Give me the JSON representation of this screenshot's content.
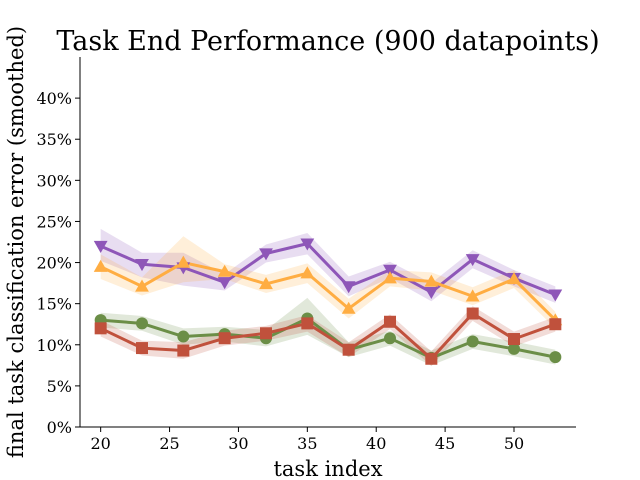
{
  "chart_data": {
    "type": "line",
    "title": "Task End Performance (900 datapoints)",
    "xlabel": "task index",
    "ylabel": "final task classification error (smoothed)",
    "xlim": [
      18.5,
      54.5
    ],
    "ylim": [
      0,
      45
    ],
    "x_ticks": [
      20,
      25,
      30,
      35,
      40,
      45,
      50
    ],
    "x_tick_labels": [
      "20",
      "25",
      "30",
      "35",
      "40",
      "45",
      "50"
    ],
    "y_ticks": [
      0,
      5,
      10,
      15,
      20,
      25,
      30,
      35,
      40
    ],
    "y_tick_labels": [
      "0%",
      "5%",
      "10%",
      "15%",
      "20%",
      "25%",
      "30%",
      "35%",
      "40%"
    ],
    "grid": false,
    "x": [
      20,
      23,
      26,
      29,
      32,
      35,
      38,
      41,
      44,
      47,
      50,
      53
    ],
    "series": [
      {
        "name": "purple",
        "color": "#8e56b8",
        "marker": "triangle-down",
        "values": [
          22.0,
          19.8,
          19.4,
          17.6,
          21.1,
          22.3,
          17.1,
          19.1,
          16.4,
          20.4,
          18.1,
          16.1
        ],
        "lower": [
          20.2,
          18.2,
          17.2,
          16.6,
          20.0,
          21.0,
          15.9,
          18.1,
          15.3,
          19.3,
          17.1,
          15.1
        ],
        "upper": [
          24.1,
          21.2,
          21.2,
          18.6,
          22.2,
          23.6,
          18.3,
          20.1,
          17.5,
          21.5,
          19.1,
          17.1
        ]
      },
      {
        "name": "orange",
        "color": "#ffad42",
        "marker": "triangle-up",
        "values": [
          19.5,
          17.1,
          20.0,
          18.9,
          17.4,
          18.7,
          14.4,
          18.1,
          17.7,
          15.9,
          18.0,
          13.0
        ],
        "lower": [
          18.0,
          16.0,
          17.6,
          18.0,
          16.3,
          17.5,
          13.2,
          17.1,
          16.6,
          14.8,
          16.9,
          12.0
        ],
        "upper": [
          21.0,
          18.2,
          23.2,
          19.8,
          18.5,
          19.9,
          15.6,
          19.1,
          18.8,
          17.0,
          19.1,
          14.0
        ]
      },
      {
        "name": "green",
        "color": "#6b8e47",
        "marker": "circle",
        "values": [
          13.0,
          12.6,
          11.0,
          11.3,
          10.8,
          13.2,
          9.4,
          10.8,
          8.4,
          10.4,
          9.5,
          8.5
        ],
        "lower": [
          12.1,
          11.7,
          10.0,
          10.4,
          9.8,
          11.2,
          8.5,
          9.9,
          7.5,
          9.5,
          8.6,
          7.6
        ],
        "upper": [
          13.9,
          13.5,
          12.0,
          12.2,
          11.8,
          15.7,
          10.3,
          11.7,
          9.3,
          11.3,
          10.4,
          9.4
        ]
      },
      {
        "name": "red",
        "color": "#c0513c",
        "marker": "square",
        "values": [
          12.0,
          9.6,
          9.3,
          10.8,
          11.4,
          12.6,
          9.4,
          12.8,
          8.3,
          13.8,
          10.7,
          12.5
        ],
        "lower": [
          11.0,
          8.7,
          8.3,
          9.9,
          10.5,
          11.6,
          8.5,
          11.9,
          7.4,
          12.9,
          9.8,
          11.6
        ],
        "upper": [
          13.0,
          10.5,
          10.3,
          11.7,
          12.3,
          13.6,
          10.3,
          13.7,
          9.2,
          14.7,
          11.6,
          13.4
        ]
      }
    ]
  }
}
